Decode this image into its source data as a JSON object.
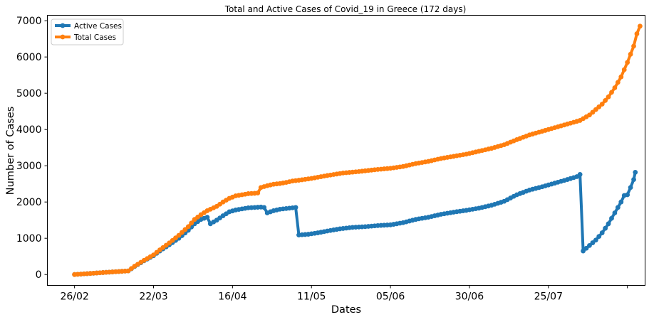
{
  "chart_data": {
    "type": "line",
    "title": "Total and Active Cases of Covid_19 in Greece (172 days)",
    "xlabel": "Dates",
    "ylabel": "Number of Cases",
    "x_ticks": [
      {
        "day": 0,
        "label": "26/02"
      },
      {
        "day": 25,
        "label": "22/03"
      },
      {
        "day": 50,
        "label": "16/04"
      },
      {
        "day": 75,
        "label": "11/05"
      },
      {
        "day": 100,
        "label": "05/06"
      },
      {
        "day": 125,
        "label": "30/06"
      },
      {
        "day": 150,
        "label": "25/07"
      },
      {
        "day": 175,
        "label": ""
      }
    ],
    "xlim": [
      -8.6,
      180.6
    ],
    "ylim": [
      -300,
      7150
    ],
    "y_ticks": [
      0,
      1000,
      2000,
      3000,
      4000,
      5000,
      6000,
      7000
    ],
    "grid": false,
    "legend_position": "upper-left",
    "series": [
      {
        "name": "Active Cases",
        "color": "#1f77b4",
        "points": [
          [
            0,
            0
          ],
          [
            10,
            60
          ],
          [
            17,
            100
          ],
          [
            19,
            220
          ],
          [
            22,
            380
          ],
          [
            25,
            520
          ],
          [
            27,
            650
          ],
          [
            30,
            820
          ],
          [
            33,
            1000
          ],
          [
            36,
            1220
          ],
          [
            38,
            1400
          ],
          [
            40,
            1520
          ],
          [
            42,
            1580
          ],
          [
            43,
            1400
          ],
          [
            45,
            1500
          ],
          [
            47,
            1620
          ],
          [
            49,
            1730
          ],
          [
            51,
            1780
          ],
          [
            53,
            1810
          ],
          [
            55,
            1840
          ],
          [
            57,
            1850
          ],
          [
            59,
            1860
          ],
          [
            60,
            1850
          ],
          [
            61,
            1700
          ],
          [
            63,
            1760
          ],
          [
            65,
            1800
          ],
          [
            67,
            1820
          ],
          [
            69,
            1840
          ],
          [
            70,
            1850
          ],
          [
            71,
            1090
          ],
          [
            74,
            1110
          ],
          [
            77,
            1150
          ],
          [
            80,
            1200
          ],
          [
            84,
            1260
          ],
          [
            88,
            1300
          ],
          [
            92,
            1320
          ],
          [
            96,
            1350
          ],
          [
            100,
            1370
          ],
          [
            104,
            1430
          ],
          [
            108,
            1520
          ],
          [
            112,
            1580
          ],
          [
            116,
            1660
          ],
          [
            120,
            1720
          ],
          [
            124,
            1770
          ],
          [
            128,
            1830
          ],
          [
            132,
            1910
          ],
          [
            136,
            2020
          ],
          [
            140,
            2200
          ],
          [
            144,
            2330
          ],
          [
            148,
            2420
          ],
          [
            152,
            2520
          ],
          [
            156,
            2620
          ],
          [
            159,
            2700
          ],
          [
            160,
            2760
          ],
          [
            161,
            650
          ],
          [
            163,
            800
          ],
          [
            165,
            950
          ],
          [
            167,
            1150
          ],
          [
            169,
            1400
          ],
          [
            171,
            1700
          ],
          [
            173,
            2000
          ],
          [
            174,
            2180
          ],
          [
            175,
            2200
          ],
          [
            176,
            2400
          ],
          [
            177,
            2620
          ],
          [
            177.5,
            2820
          ]
        ]
      },
      {
        "name": "Total Cases",
        "color": "#ff7f0e",
        "points": [
          [
            0,
            0
          ],
          [
            10,
            60
          ],
          [
            17,
            100
          ],
          [
            19,
            230
          ],
          [
            22,
            390
          ],
          [
            25,
            540
          ],
          [
            27,
            680
          ],
          [
            30,
            870
          ],
          [
            33,
            1080
          ],
          [
            36,
            1320
          ],
          [
            38,
            1520
          ],
          [
            40,
            1650
          ],
          [
            42,
            1760
          ],
          [
            45,
            1880
          ],
          [
            47,
            2000
          ],
          [
            49,
            2100
          ],
          [
            51,
            2170
          ],
          [
            53,
            2200
          ],
          [
            55,
            2230
          ],
          [
            57,
            2240
          ],
          [
            58,
            2250
          ],
          [
            59,
            2400
          ],
          [
            61,
            2450
          ],
          [
            63,
            2490
          ],
          [
            65,
            2510
          ],
          [
            67,
            2540
          ],
          [
            69,
            2580
          ],
          [
            71,
            2600
          ],
          [
            75,
            2650
          ],
          [
            80,
            2730
          ],
          [
            85,
            2800
          ],
          [
            90,
            2840
          ],
          [
            95,
            2890
          ],
          [
            100,
            2930
          ],
          [
            104,
            2980
          ],
          [
            108,
            3060
          ],
          [
            112,
            3120
          ],
          [
            116,
            3200
          ],
          [
            120,
            3260
          ],
          [
            124,
            3320
          ],
          [
            128,
            3400
          ],
          [
            132,
            3480
          ],
          [
            136,
            3580
          ],
          [
            140,
            3720
          ],
          [
            144,
            3850
          ],
          [
            148,
            3950
          ],
          [
            152,
            4050
          ],
          [
            156,
            4150
          ],
          [
            160,
            4250
          ],
          [
            163,
            4400
          ],
          [
            165,
            4550
          ],
          [
            167,
            4700
          ],
          [
            169,
            4900
          ],
          [
            171,
            5150
          ],
          [
            173,
            5450
          ],
          [
            175,
            5850
          ],
          [
            177,
            6300
          ],
          [
            178,
            6640
          ],
          [
            179,
            6850
          ]
        ]
      }
    ]
  }
}
